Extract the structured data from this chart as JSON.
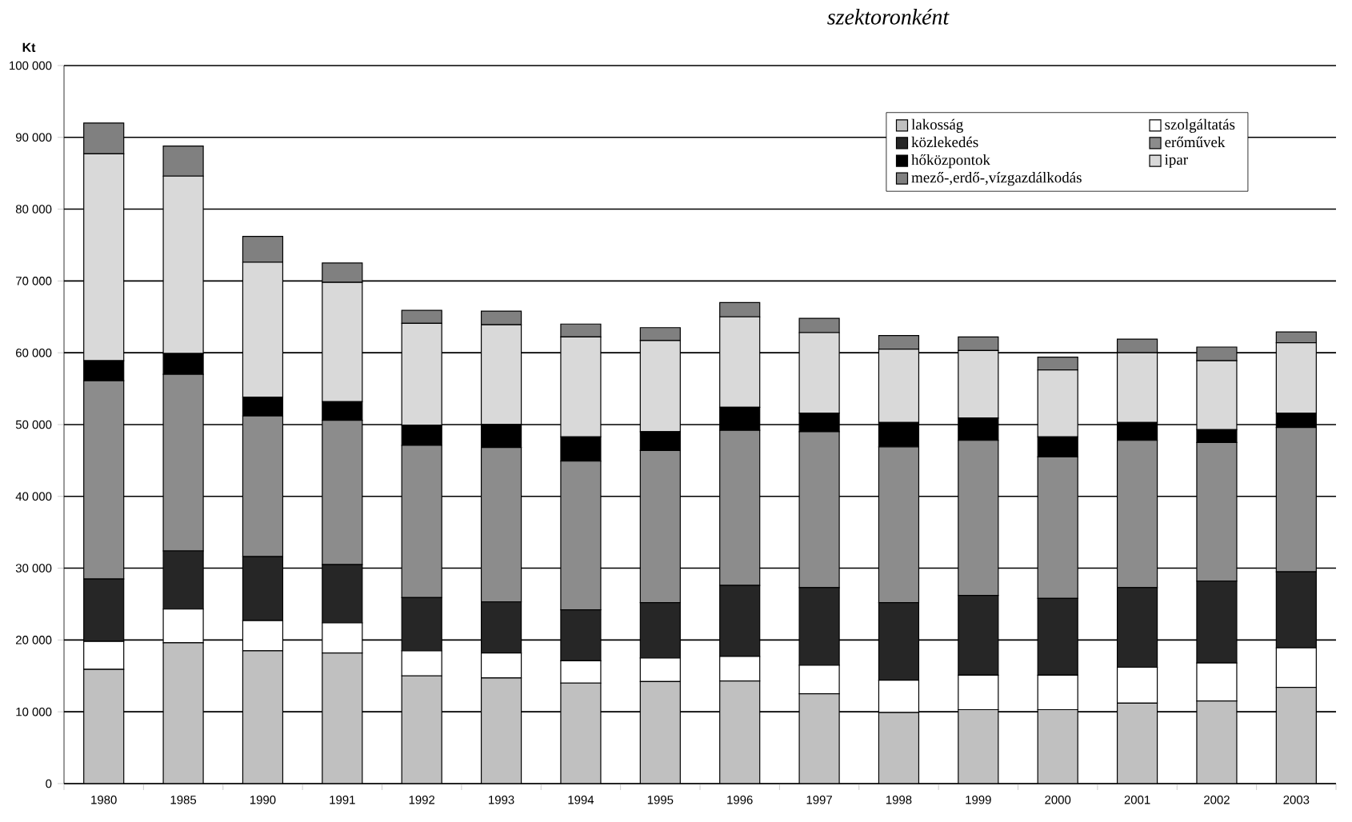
{
  "chart_data": {
    "type": "bar",
    "stacked": true,
    "title": "szektoronként",
    "ylabel": "Kt",
    "categories": [
      "1980",
      "1985",
      "1990",
      "1991",
      "1992",
      "1993",
      "1994",
      "1995",
      "1996",
      "1997",
      "1998",
      "1999",
      "2000",
      "2001",
      "2002",
      "2003"
    ],
    "series": [
      {
        "name": "lakosság",
        "color": "#c0c0c0",
        "values": [
          15900,
          19600,
          18500,
          18200,
          15000,
          14700,
          14000,
          14200,
          14300,
          12500,
          9900,
          10300,
          10300,
          11200,
          11500,
          13400
        ]
      },
      {
        "name": "szolgáltatás",
        "color": "#ffffff",
        "values": [
          3900,
          4700,
          4200,
          4200,
          3500,
          3500,
          3100,
          3300,
          3400,
          4000,
          4500,
          4800,
          4800,
          5000,
          5300,
          5500
        ]
      },
      {
        "name": "közlekedés",
        "color": "#262626",
        "values": [
          8700,
          8100,
          8900,
          8100,
          7400,
          7100,
          7100,
          7700,
          9900,
          10800,
          10800,
          11100,
          10700,
          11100,
          11400,
          10600
        ]
      },
      {
        "name": "erőművek",
        "color": "#8c8c8c",
        "values": [
          27600,
          24600,
          19600,
          20100,
          21200,
          21500,
          20700,
          21200,
          21600,
          21700,
          21700,
          21600,
          19700,
          20500,
          19300,
          20100
        ]
      },
      {
        "name": "hőközpontok",
        "color": "#000000",
        "values": [
          2800,
          2900,
          2600,
          2600,
          2800,
          3200,
          3400,
          2600,
          3200,
          2600,
          3400,
          3100,
          2800,
          2500,
          1800,
          2000
        ]
      },
      {
        "name": "ipar",
        "color": "#d9d9d9",
        "values": [
          28800,
          24700,
          18800,
          16600,
          14200,
          13900,
          13900,
          12700,
          12600,
          11200,
          10200,
          9400,
          9300,
          9700,
          9600,
          9800
        ]
      },
      {
        "name": "mező-,erdő-,vízgazdálkodás",
        "color": "#808080",
        "values": [
          4300,
          4200,
          3600,
          2700,
          1800,
          1900,
          1800,
          1800,
          2000,
          2000,
          1900,
          1900,
          1800,
          1900,
          1900,
          1500
        ]
      }
    ],
    "ylim": [
      0,
      100000
    ],
    "yticks": [
      0,
      {
        "value": 10000,
        "label": "10 000"
      },
      {
        "value": 20000,
        "label": "20 000"
      },
      {
        "value": 30000,
        "label": "30 000"
      },
      {
        "value": 40000,
        "label": "40 000"
      },
      {
        "value": 50000,
        "label": "50 000"
      },
      {
        "value": 60000,
        "label": "60 000"
      },
      {
        "value": 70000,
        "label": "70 000"
      },
      {
        "value": 80000,
        "label": "80 000"
      },
      {
        "value": 90000,
        "label": "90 000"
      },
      {
        "value": 100000,
        "label": "100 000"
      }
    ],
    "grid": "y",
    "legend": "top right"
  }
}
